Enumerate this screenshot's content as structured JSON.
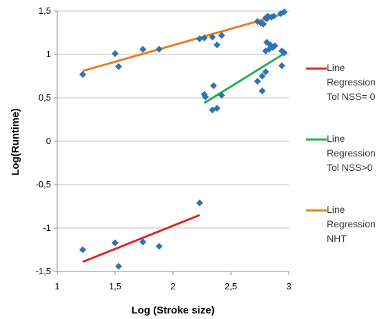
{
  "chart_data": {
    "type": "scatter",
    "title": "",
    "xlabel": "Log (Stroke size)",
    "ylabel": "Log(Runtime)",
    "xlim": [
      1,
      3
    ],
    "ylim": [
      -1.5,
      1.5
    ],
    "xticks": [
      "1",
      "1,5",
      "2",
      "2,5",
      "3"
    ],
    "yticks": [
      "1,5",
      "1",
      "0,5",
      "0",
      "-0,5",
      "-1",
      "-1,5"
    ],
    "grid": "horizontal",
    "legend": "right",
    "series": [
      {
        "name": "Line Regression Tol NSS= 0",
        "color": "#e8201c",
        "points": [
          [
            1.22,
            -1.25
          ],
          [
            1.5,
            -1.17
          ],
          [
            1.53,
            -1.44
          ],
          [
            1.74,
            -1.16
          ],
          [
            1.88,
            -1.21
          ],
          [
            2.23,
            -0.71
          ]
        ],
        "trend": [
          [
            1.22,
            -1.39
          ],
          [
            2.23,
            -0.85
          ]
        ]
      },
      {
        "name": "Line Regression Tol NSS>0",
        "color": "#1fb14b",
        "points": [
          [
            2.27,
            0.54
          ],
          [
            2.28,
            0.51
          ],
          [
            2.34,
            0.36
          ],
          [
            2.35,
            0.64
          ],
          [
            2.38,
            0.38
          ],
          [
            2.42,
            0.53
          ],
          [
            2.73,
            0.69
          ],
          [
            2.77,
            0.58
          ],
          [
            2.77,
            0.75
          ],
          [
            2.8,
            0.8
          ],
          [
            2.8,
            1.04
          ],
          [
            2.81,
            1.14
          ],
          [
            2.83,
            1.06
          ],
          [
            2.84,
            1.11
          ],
          [
            2.86,
            1.08
          ],
          [
            2.88,
            1.1
          ],
          [
            2.94,
            1.04
          ],
          [
            2.94,
            0.87
          ],
          [
            2.96,
            1.02
          ]
        ],
        "trend": [
          [
            2.27,
            0.44
          ],
          [
            2.96,
            1.01
          ]
        ]
      },
      {
        "name": "Line Regression NHT",
        "color": "#ec7c1c",
        "points": [
          [
            1.22,
            0.77
          ],
          [
            1.5,
            1.01
          ],
          [
            1.53,
            0.86
          ],
          [
            1.74,
            1.06
          ],
          [
            1.88,
            1.06
          ],
          [
            2.23,
            1.18
          ],
          [
            2.27,
            1.19
          ],
          [
            2.34,
            1.2
          ],
          [
            2.38,
            1.11
          ],
          [
            2.42,
            1.22
          ],
          [
            2.73,
            1.38
          ],
          [
            2.76,
            1.36
          ],
          [
            2.78,
            1.35
          ],
          [
            2.8,
            1.42
          ],
          [
            2.81,
            1.41
          ],
          [
            2.82,
            1.44
          ],
          [
            2.85,
            1.43
          ],
          [
            2.87,
            1.44
          ],
          [
            2.93,
            1.47
          ],
          [
            2.96,
            1.49
          ]
        ],
        "trend": [
          [
            1.22,
            0.81
          ],
          [
            2.96,
            1.47
          ]
        ]
      }
    ]
  }
}
